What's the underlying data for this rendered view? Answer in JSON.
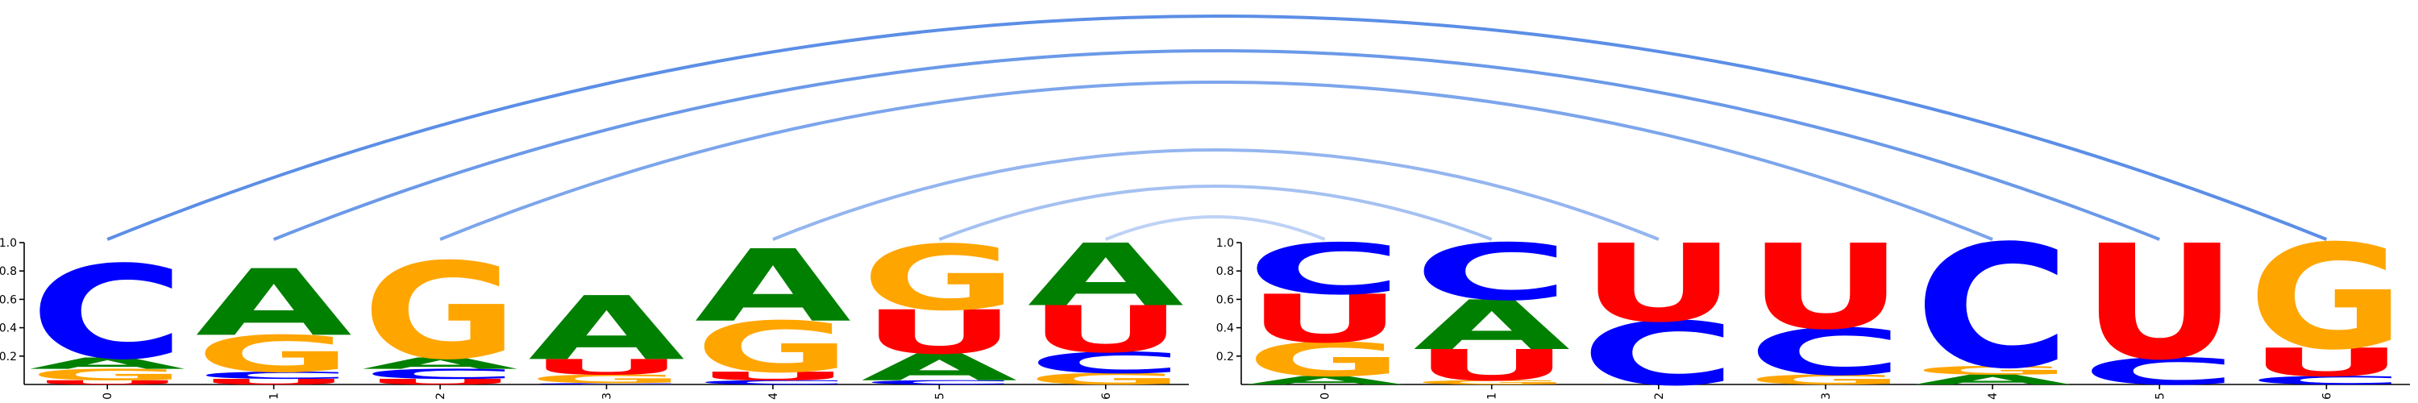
{
  "chart_data": {
    "type": "sequence-logo",
    "alphabet": [
      "A",
      "C",
      "G",
      "U"
    ],
    "colors": {
      "A": "#008000",
      "C": "#0000ff",
      "G": "#ffa500",
      "U": "#ff0000",
      "arc": "#5b8ee6"
    },
    "yticks": [
      "0.2",
      "0.4",
      "0.6",
      "0.8",
      "1.0"
    ],
    "ylim": [
      0,
      1.0
    ],
    "panels": [
      {
        "xticks": [
          "0",
          "1",
          "2",
          "3",
          "4",
          "5",
          "6"
        ],
        "positions": [
          [
            {
              "l": "U",
              "h": 0.03
            },
            {
              "l": "G",
              "h": 0.08
            },
            {
              "l": "A",
              "h": 0.08
            },
            {
              "l": "C",
              "h": 0.66
            }
          ],
          [
            {
              "l": "U",
              "h": 0.04
            },
            {
              "l": "C",
              "h": 0.05
            },
            {
              "l": "G",
              "h": 0.26
            },
            {
              "l": "A",
              "h": 0.47
            }
          ],
          [
            {
              "l": "U",
              "h": 0.04
            },
            {
              "l": "C",
              "h": 0.07
            },
            {
              "l": "A",
              "h": 0.08
            },
            {
              "l": "G",
              "h": 0.68
            }
          ],
          [
            {
              "l": "C",
              "h": 0.01
            },
            {
              "l": "G",
              "h": 0.06
            },
            {
              "l": "U",
              "h": 0.11
            },
            {
              "l": "A",
              "h": 0.45
            }
          ],
          [
            {
              "l": "C",
              "h": 0.03
            },
            {
              "l": "U",
              "h": 0.06
            },
            {
              "l": "G",
              "h": 0.36
            },
            {
              "l": "A",
              "h": 0.51
            }
          ],
          [
            {
              "l": "C",
              "h": 0.03
            },
            {
              "l": "A",
              "h": 0.19
            },
            {
              "l": "U",
              "h": 0.31
            },
            {
              "l": "G",
              "h": 0.46
            }
          ],
          [
            {
              "l": "G",
              "h": 0.08
            },
            {
              "l": "C",
              "h": 0.15
            },
            {
              "l": "U",
              "h": 0.33
            },
            {
              "l": "A",
              "h": 0.44
            }
          ]
        ]
      },
      {
        "xticks": [
          "0",
          "1",
          "2",
          "3",
          "4",
          "5",
          "6"
        ],
        "positions": [
          [
            {
              "l": "A",
              "h": 0.06
            },
            {
              "l": "G",
              "h": 0.24
            },
            {
              "l": "U",
              "h": 0.34
            },
            {
              "l": "C",
              "h": 0.36
            }
          ],
          [
            {
              "l": "G",
              "h": 0.03
            },
            {
              "l": "U",
              "h": 0.22
            },
            {
              "l": "A",
              "h": 0.35
            },
            {
              "l": "C",
              "h": 0.4
            }
          ],
          [
            {
              "l": "C",
              "h": 0.45
            },
            {
              "l": "U",
              "h": 0.55
            }
          ],
          [
            {
              "l": "G",
              "h": 0.07
            },
            {
              "l": "C",
              "h": 0.33
            },
            {
              "l": "U",
              "h": 0.6
            }
          ],
          [
            {
              "l": "A",
              "h": 0.07
            },
            {
              "l": "G",
              "h": 0.06
            },
            {
              "l": "C",
              "h": 0.87
            }
          ],
          [
            {
              "l": "C",
              "h": 0.19
            },
            {
              "l": "U",
              "h": 0.81
            }
          ],
          [
            {
              "l": "C",
              "h": 0.06
            },
            {
              "l": "U",
              "h": 0.2
            },
            {
              "l": "G",
              "h": 0.74
            }
          ]
        ]
      }
    ],
    "arcs": [
      {
        "from": [
          0,
          0
        ],
        "to": [
          1,
          6
        ],
        "opacity": 1.0
      },
      {
        "from": [
          0,
          1
        ],
        "to": [
          1,
          5
        ],
        "opacity": 0.9
      },
      {
        "from": [
          0,
          2
        ],
        "to": [
          1,
          4
        ],
        "opacity": 0.8
      },
      {
        "from": [
          0,
          4
        ],
        "to": [
          1,
          2
        ],
        "opacity": 0.65
      },
      {
        "from": [
          0,
          5
        ],
        "to": [
          1,
          1
        ],
        "opacity": 0.55
      },
      {
        "from": [
          0,
          6
        ],
        "to": [
          1,
          0
        ],
        "opacity": 0.4
      }
    ]
  }
}
